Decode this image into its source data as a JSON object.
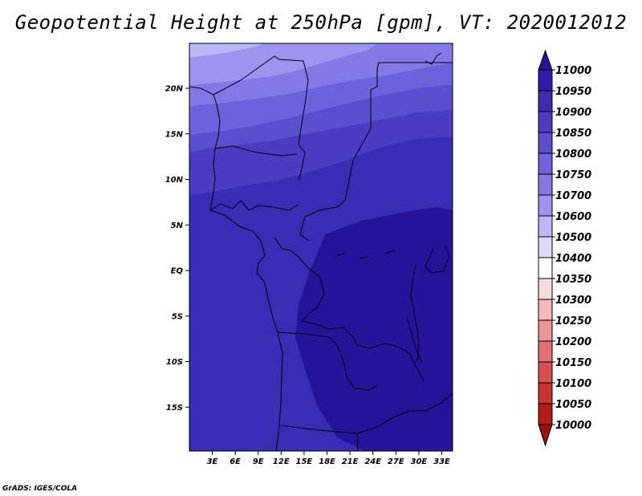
{
  "title": "Geopotential Height at 250hPa [gpm], VT: 2020012012",
  "footer": "GrADS: IGES/COLA",
  "map": {
    "lat_ticks": [
      "20N",
      "15N",
      "10N",
      "5N",
      "EQ",
      "5S",
      "10S",
      "15S"
    ],
    "lon_ticks": [
      "3E",
      "6E",
      "9E",
      "12E",
      "15E",
      "18E",
      "21E",
      "24E",
      "27E",
      "30E",
      "33E"
    ],
    "lon_range": [
      0,
      35
    ],
    "lat_range": [
      -20,
      24.5
    ]
  },
  "colorbar": {
    "labels": [
      "11000",
      "10950",
      "10900",
      "10850",
      "10800",
      "10750",
      "10700",
      "10600",
      "10500",
      "10400",
      "10350",
      "10300",
      "10250",
      "10200",
      "10150",
      "10100",
      "10050",
      "10000"
    ],
    "colors": [
      "#24149a",
      "#2e1da8",
      "#3a2db5",
      "#4a3dc3",
      "#5a50cf",
      "#6c62db",
      "#8279e6",
      "#9c95ef",
      "#bcb7f6",
      "#dcdafb",
      "#ffffff",
      "#fadadc",
      "#f4b8bb",
      "#ec9598",
      "#e27173",
      "#d7504f",
      "#c63330",
      "#b21d19",
      "#9c1010"
    ]
  }
}
